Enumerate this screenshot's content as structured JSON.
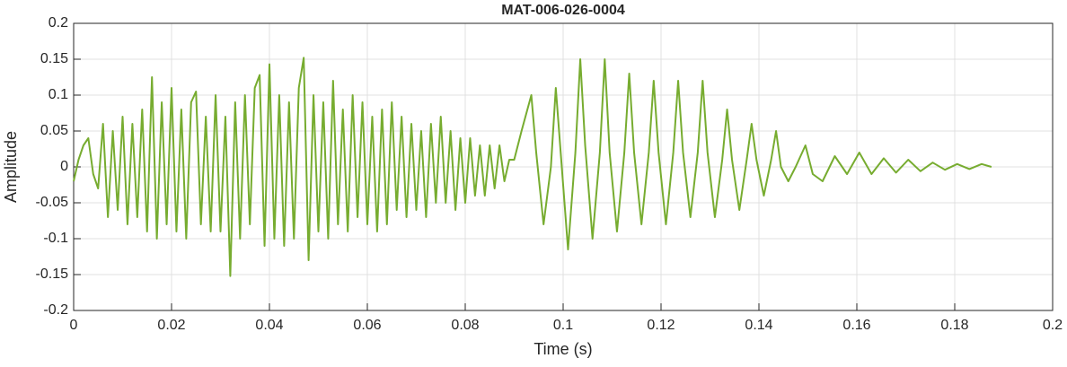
{
  "chart_data": {
    "type": "line",
    "title": "MAT-006-026-0004",
    "xlabel": "Time (s)",
    "ylabel": "Amplitude",
    "color": "#77ac30",
    "grid": true,
    "xlim": [
      0,
      0.2
    ],
    "xticks": [
      0,
      0.02,
      0.04,
      0.06,
      0.08,
      0.1,
      0.12,
      0.14,
      0.16,
      0.18,
      0.2
    ],
    "ylim": [
      -0.2,
      0.2
    ],
    "yticks": [
      -0.2,
      -0.15,
      -0.1,
      -0.05,
      0,
      0.05,
      0.1,
      0.15,
      0.2
    ],
    "x": [
      0,
      0.001,
      0.002,
      0.003,
      0.004,
      0.005,
      0.006,
      0.007,
      0.008,
      0.009,
      0.01,
      0.011,
      0.012,
      0.013,
      0.014,
      0.015,
      0.016,
      0.017,
      0.018,
      0.019,
      0.02,
      0.021,
      0.022,
      0.023,
      0.024,
      0.025,
      0.026,
      0.027,
      0.028,
      0.029,
      0.03,
      0.031,
      0.032,
      0.033,
      0.034,
      0.035,
      0.036,
      0.037,
      0.038,
      0.039,
      0.04,
      0.041,
      0.042,
      0.043,
      0.044,
      0.045,
      0.046,
      0.047,
      0.048,
      0.049,
      0.05,
      0.051,
      0.052,
      0.053,
      0.054,
      0.055,
      0.056,
      0.057,
      0.058,
      0.059,
      0.06,
      0.061,
      0.062,
      0.063,
      0.064,
      0.065,
      0.066,
      0.067,
      0.068,
      0.069,
      0.07,
      0.071,
      0.072,
      0.073,
      0.074,
      0.075,
      0.076,
      0.077,
      0.078,
      0.079,
      0.08,
      0.081,
      0.082,
      0.083,
      0.084,
      0.085,
      0.086,
      0.087,
      0.088,
      0.089,
      0.09,
      0.0915,
      0.0935,
      0.0945,
      0.096,
      0.0975,
      0.0985,
      0.0995,
      0.101,
      0.1025,
      0.1035,
      0.1045,
      0.106,
      0.1075,
      0.1085,
      0.1095,
      0.111,
      0.1125,
      0.1135,
      0.1145,
      0.116,
      0.1175,
      0.1185,
      0.1195,
      0.121,
      0.1225,
      0.1235,
      0.1245,
      0.126,
      0.1275,
      0.1285,
      0.1295,
      0.131,
      0.1325,
      0.1335,
      0.1345,
      0.136,
      0.1375,
      0.1385,
      0.1395,
      0.141,
      0.1425,
      0.1435,
      0.1445,
      0.146,
      0.1475,
      0.1495,
      0.151,
      0.153,
      0.1555,
      0.158,
      0.1605,
      0.163,
      0.1655,
      0.168,
      0.1705,
      0.173,
      0.1755,
      0.178,
      0.1805,
      0.183,
      0.1855,
      0.1875
    ],
    "values": [
      -0.02,
      0.01,
      0.03,
      0.04,
      -0.01,
      -0.03,
      0.06,
      -0.07,
      0.05,
      -0.06,
      0.07,
      -0.08,
      0.06,
      -0.07,
      0.08,
      -0.09,
      0.125,
      -0.1,
      0.09,
      -0.08,
      0.11,
      -0.09,
      0.08,
      -0.1,
      0.09,
      0.105,
      -0.08,
      0.07,
      -0.09,
      0.1,
      -0.09,
      0.07,
      -0.152,
      0.09,
      -0.1,
      0.1,
      -0.08,
      0.11,
      0.128,
      -0.11,
      0.143,
      -0.1,
      0.1,
      -0.11,
      0.09,
      -0.1,
      0.11,
      0.152,
      -0.13,
      0.1,
      -0.09,
      0.09,
      -0.1,
      0.12,
      -0.08,
      0.08,
      -0.09,
      0.1,
      -0.07,
      0.09,
      -0.08,
      0.07,
      -0.09,
      0.08,
      -0.08,
      0.09,
      -0.06,
      0.07,
      -0.07,
      0.06,
      -0.06,
      0.05,
      -0.07,
      0.06,
      -0.05,
      0.07,
      -0.05,
      0.05,
      -0.06,
      0.04,
      -0.05,
      0.04,
      -0.04,
      0.03,
      -0.04,
      0.03,
      -0.03,
      0.03,
      -0.02,
      0.01,
      0.01,
      0.05,
      0.1,
      0.02,
      -0.08,
      0,
      0.11,
      0.02,
      -0.115,
      0.02,
      0.15,
      0.03,
      -0.1,
      0.02,
      0.15,
      0.02,
      -0.09,
      0.02,
      0.13,
      0.02,
      -0.08,
      0.02,
      0.12,
      0.02,
      -0.08,
      0.02,
      0.12,
      0.02,
      -0.07,
      0.02,
      0.12,
      0.02,
      -0.07,
      0.01,
      0.08,
      0.01,
      -0.06,
      0.01,
      0.06,
      0.01,
      -0.04,
      0.01,
      0.05,
      0,
      -0.02,
      0,
      0.03,
      -0.01,
      -0.02,
      0.015,
      -0.01,
      0.02,
      -0.01,
      0.012,
      -0.008,
      0.01,
      -0.006,
      0.006,
      -0.004,
      0.004,
      -0.003,
      0.004,
      0
    ]
  }
}
